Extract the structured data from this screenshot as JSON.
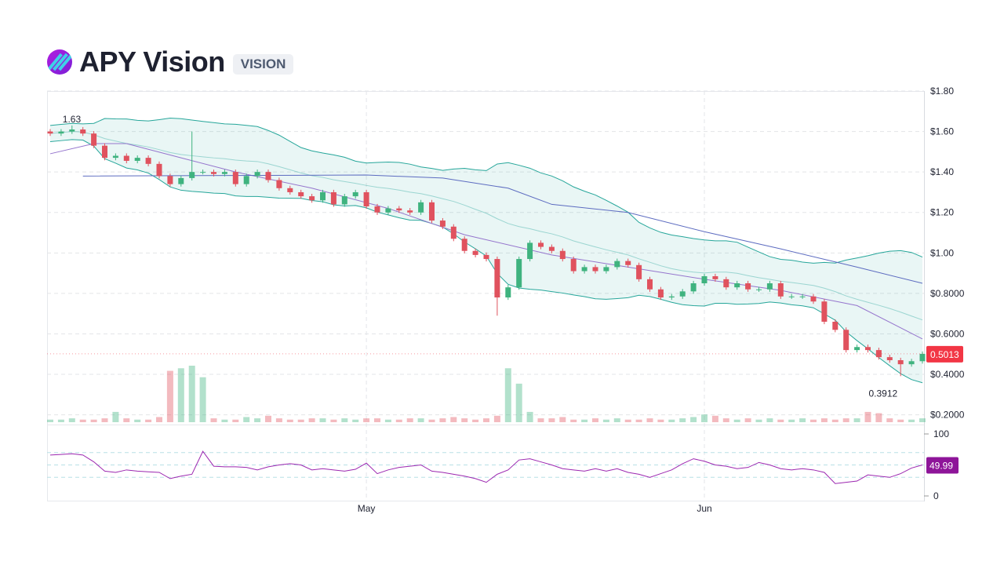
{
  "header": {
    "title": "APY Vision",
    "ticker": "VISION"
  },
  "colors": {
    "up": "#3fb37f",
    "down": "#e0525e",
    "band": "#26a69a",
    "ma_short": "#9575cd",
    "ma_long": "#5c6bc0",
    "rsi": "#9c27b0",
    "price_badge": "#f23645",
    "rsi_badge": "#8e1599"
  },
  "chart_data": {
    "type": "candlestick",
    "price_axis": {
      "ticks": [
        "$1.80",
        "$1.60",
        "$1.40",
        "$1.20",
        "$1.00",
        "$0.8000",
        "$0.6000",
        "$0.4000",
        "$0.2000"
      ],
      "tick_values": [
        1.8,
        1.6,
        1.4,
        1.2,
        1.0,
        0.8,
        0.6,
        0.4,
        0.2
      ],
      "range": [
        0.17,
        1.8
      ]
    },
    "x_axis": {
      "ticks": [
        {
          "label": "May",
          "day": 29
        },
        {
          "label": "Jun",
          "day": 60
        }
      ]
    },
    "closes": [
      1.59,
      1.6,
      1.61,
      1.59,
      1.53,
      1.47,
      1.48,
      1.455,
      1.47,
      1.44,
      1.38,
      1.34,
      1.37,
      1.4,
      1.4,
      1.39,
      1.4,
      1.34,
      1.38,
      1.4,
      1.36,
      1.32,
      1.3,
      1.28,
      1.26,
      1.3,
      1.24,
      1.28,
      1.3,
      1.23,
      1.2,
      1.22,
      1.21,
      1.2,
      1.25,
      1.16,
      1.13,
      1.07,
      1.01,
      0.99,
      0.97,
      0.78,
      0.83,
      0.97,
      1.05,
      1.03,
      1.01,
      0.97,
      0.91,
      0.93,
      0.91,
      0.93,
      0.96,
      0.94,
      0.87,
      0.82,
      0.78,
      0.785,
      0.81,
      0.85,
      0.885,
      0.87,
      0.83,
      0.85,
      0.82,
      0.82,
      0.85,
      0.785,
      0.785,
      0.785,
      0.76,
      0.66,
      0.62,
      0.52,
      0.535,
      0.52,
      0.485,
      0.47,
      0.45,
      0.465,
      0.5013
    ],
    "notable": [
      {
        "day": 13,
        "high": 1.6
      },
      {
        "day": 41,
        "low": 0.69
      }
    ],
    "max_label": {
      "day": 2,
      "text": "1.63",
      "value": 1.63
    },
    "min_label": {
      "day": 78,
      "text": "0.3912",
      "value": 0.3912
    },
    "last_price": "0.5013",
    "volume": [
      2,
      2,
      3,
      2,
      2,
      3,
      8,
      3,
      2,
      2,
      4,
      40,
      42,
      44,
      35,
      3,
      2,
      2,
      4,
      3,
      5,
      3,
      2,
      2,
      3,
      3,
      2,
      3,
      2,
      3,
      3,
      2,
      2,
      3,
      3,
      2,
      3,
      4,
      3,
      2,
      3,
      5,
      42,
      30,
      8,
      3,
      3,
      4,
      2,
      2,
      3,
      2,
      3,
      2,
      2,
      3,
      2,
      2,
      3,
      4,
      6,
      5,
      3,
      2,
      3,
      2,
      3,
      2,
      2,
      3,
      2,
      3,
      2,
      3,
      3,
      8,
      7,
      3,
      2,
      2,
      3
    ],
    "ma_short": {
      "days": [
        0,
        4,
        7,
        12,
        17,
        24,
        31,
        38,
        46,
        53,
        60,
        67,
        74,
        80
      ],
      "values": [
        1.49,
        1.54,
        1.54,
        1.47,
        1.4,
        1.32,
        1.22,
        1.09,
        0.99,
        0.93,
        0.87,
        0.815,
        0.74,
        0.575
      ]
    },
    "ma_long": {
      "days": [
        3,
        29,
        36,
        42,
        46,
        53,
        60,
        67,
        74,
        80
      ],
      "values": [
        1.38,
        1.385,
        1.37,
        1.32,
        1.24,
        1.2,
        1.105,
        1.02,
        0.93,
        0.85
      ]
    },
    "bollinger": {
      "period": 20,
      "stddev": 2
    },
    "rsi": {
      "axis_ticks": [
        "100",
        "0"
      ],
      "levels": [
        70,
        50,
        30
      ],
      "last": "49.99",
      "values": [
        66,
        67,
        68,
        66,
        55,
        40,
        38,
        42,
        40,
        39,
        38,
        28,
        32,
        35,
        72,
        48,
        47,
        47,
        46,
        42,
        47,
        50,
        52,
        50,
        42,
        44,
        42,
        40,
        43,
        53,
        36,
        42,
        46,
        48,
        50,
        40,
        38,
        35,
        32,
        28,
        22,
        35,
        42,
        58,
        60,
        55,
        50,
        44,
        42,
        40,
        44,
        40,
        44,
        38,
        35,
        30,
        36,
        42,
        52,
        60,
        56,
        50,
        48,
        44,
        46,
        54,
        50,
        44,
        42,
        44,
        42,
        38,
        20,
        22,
        24,
        34,
        32,
        30,
        36,
        45,
        50
      ]
    }
  }
}
